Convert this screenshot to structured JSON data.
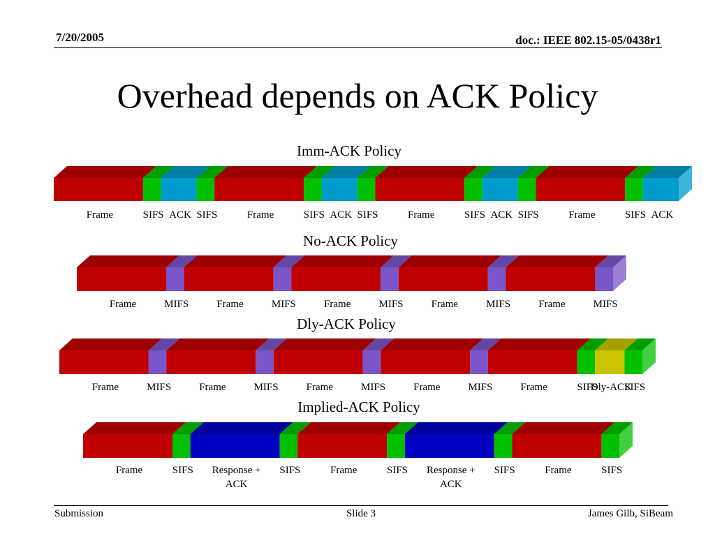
{
  "header": {
    "date": "7/20/2005",
    "doc": "doc.: IEEE 802.15-05/0438r1"
  },
  "title": "Overhead depends on ACK Policy",
  "colors": {
    "frame": "#c00000",
    "sifs": "#00c000",
    "ack": "#009ccc",
    "mifs": "#7a55c8",
    "response": "#0000c0",
    "dly_ack": "#c8c400"
  },
  "policies": [
    {
      "name": "Imm-ACK Policy",
      "segments": [
        {
          "type": "frame",
          "label": "Frame",
          "units": 5
        },
        {
          "type": "sifs",
          "label": "SIFS",
          "units": 1
        },
        {
          "type": "ack",
          "label": "ACK",
          "units": 2
        },
        {
          "type": "sifs",
          "label": "SIFS",
          "units": 1
        },
        {
          "type": "frame",
          "label": "Frame",
          "units": 5
        },
        {
          "type": "sifs",
          "label": "SIFS",
          "units": 1
        },
        {
          "type": "ack",
          "label": "ACK",
          "units": 2
        },
        {
          "type": "sifs",
          "label": "SIFS",
          "units": 1
        },
        {
          "type": "frame",
          "label": "Frame",
          "units": 5
        },
        {
          "type": "sifs",
          "label": "SIFS",
          "units": 1
        },
        {
          "type": "ack",
          "label": "ACK",
          "units": 2
        },
        {
          "type": "sifs",
          "label": "SIFS",
          "units": 1
        },
        {
          "type": "frame",
          "label": "Frame",
          "units": 5
        },
        {
          "type": "sifs",
          "label": "SIFS",
          "units": 1
        },
        {
          "type": "ack",
          "label": "ACK",
          "units": 2
        }
      ]
    },
    {
      "name": "No-ACK Policy",
      "segments": [
        {
          "type": "frame",
          "label": "Frame",
          "units": 5
        },
        {
          "type": "mifs",
          "label": "MIFS",
          "units": 1
        },
        {
          "type": "frame",
          "label": "Frame",
          "units": 5
        },
        {
          "type": "mifs",
          "label": "MIFS",
          "units": 1
        },
        {
          "type": "frame",
          "label": "Frame",
          "units": 5
        },
        {
          "type": "mifs",
          "label": "MIFS",
          "units": 1
        },
        {
          "type": "frame",
          "label": "Frame",
          "units": 5
        },
        {
          "type": "mifs",
          "label": "MIFS",
          "units": 1
        },
        {
          "type": "frame",
          "label": "Frame",
          "units": 5
        },
        {
          "type": "mifs",
          "label": "MIFS",
          "units": 1
        }
      ]
    },
    {
      "name": "Dly-ACK Policy",
      "segments": [
        {
          "type": "frame",
          "label": "Frame",
          "units": 5
        },
        {
          "type": "mifs",
          "label": "MIFS",
          "units": 1
        },
        {
          "type": "frame",
          "label": "Frame",
          "units": 5
        },
        {
          "type": "mifs",
          "label": "MIFS",
          "units": 1
        },
        {
          "type": "frame",
          "label": "Frame",
          "units": 5
        },
        {
          "type": "mifs",
          "label": "MIFS",
          "units": 1
        },
        {
          "type": "frame",
          "label": "Frame",
          "units": 5
        },
        {
          "type": "mifs",
          "label": "MIFS",
          "units": 1
        },
        {
          "type": "frame",
          "label": "Frame",
          "units": 5
        },
        {
          "type": "sifs",
          "label": "SIFS",
          "units": 1
        },
        {
          "type": "dly_ack",
          "label": "Dly-ACK",
          "units": 1.65
        },
        {
          "type": "sifs",
          "label": "SIFS",
          "units": 1
        }
      ]
    },
    {
      "name": "Implied-ACK Policy",
      "segments": [
        {
          "type": "frame",
          "label": "Frame",
          "units": 5
        },
        {
          "type": "sifs",
          "label": "SIFS",
          "units": 1
        },
        {
          "type": "response",
          "label": "Response + ACK",
          "units": 5
        },
        {
          "type": "sifs",
          "label": "SIFS",
          "units": 1
        },
        {
          "type": "frame",
          "label": "Frame",
          "units": 5
        },
        {
          "type": "sifs",
          "label": "SIFS",
          "units": 1
        },
        {
          "type": "response",
          "label": "Response + ACK",
          "units": 5
        },
        {
          "type": "sifs",
          "label": "SIFS",
          "units": 1
        },
        {
          "type": "frame",
          "label": "Frame",
          "units": 5
        },
        {
          "type": "sifs",
          "label": "SIFS",
          "units": 1
        }
      ]
    }
  ],
  "footer": {
    "left": "Submission",
    "center": "Slide 3",
    "right": "James Gilb, SiBeam"
  }
}
